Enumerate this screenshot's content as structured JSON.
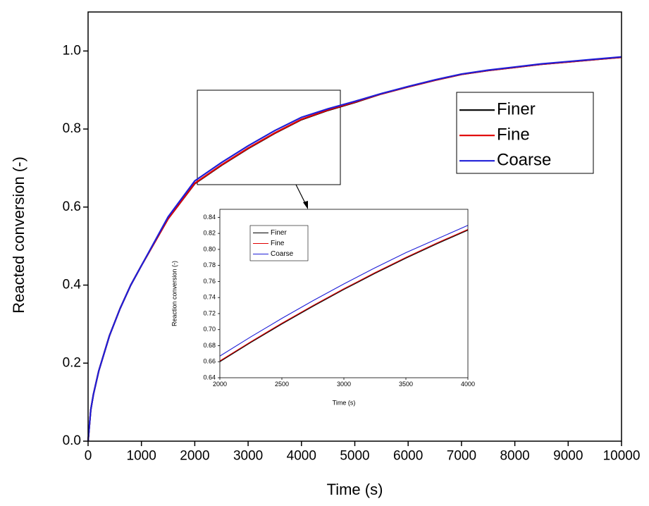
{
  "chart_data": [
    {
      "type": "line",
      "xlabel": "Time (s)",
      "ylabel": "Reacted conversion (-)",
      "x": [
        0,
        50,
        100,
        200,
        400,
        600,
        800,
        1000,
        1500,
        2000,
        2500,
        3000,
        3500,
        4000,
        4500,
        5000,
        5500,
        6000,
        6500,
        7000,
        7500,
        8000,
        8500,
        9000,
        9500,
        10000
      ],
      "series": [
        {
          "name": "Finer",
          "color": "#000000",
          "values": [
            0,
            0.08,
            0.12,
            0.18,
            0.27,
            0.34,
            0.4,
            0.45,
            0.57,
            0.66,
            0.707,
            0.75,
            0.789,
            0.824,
            0.848,
            0.868,
            0.89,
            0.908,
            0.925,
            0.94,
            0.95,
            0.958,
            0.966,
            0.972,
            0.978,
            0.984
          ]
        },
        {
          "name": "Fine",
          "color": "#e00000",
          "values": [
            0,
            0.08,
            0.12,
            0.18,
            0.27,
            0.34,
            0.4,
            0.45,
            0.57,
            0.661,
            0.708,
            0.751,
            0.79,
            0.825,
            0.849,
            0.869,
            0.89,
            0.908,
            0.925,
            0.94,
            0.95,
            0.958,
            0.966,
            0.972,
            0.978,
            0.984
          ]
        },
        {
          "name": "Coarse",
          "color": "#1f1fd8",
          "values": [
            0,
            0.08,
            0.12,
            0.18,
            0.27,
            0.34,
            0.4,
            0.45,
            0.575,
            0.667,
            0.714,
            0.757,
            0.796,
            0.83,
            0.852,
            0.871,
            0.891,
            0.909,
            0.926,
            0.941,
            0.951,
            0.959,
            0.967,
            0.973,
            0.979,
            0.985
          ]
        }
      ],
      "xlim": [
        0,
        10000
      ],
      "xticks": [
        0,
        1000,
        2000,
        3000,
        4000,
        5000,
        6000,
        7000,
        8000,
        9000,
        10000
      ],
      "ylim": [
        0,
        1.1
      ],
      "yticks": [
        {
          "value": 0,
          "label": "0.0"
        },
        0.2,
        0.4,
        0.6,
        0.8,
        {
          "value": 1,
          "label": "1.0"
        }
      ],
      "legend": "upper right"
    },
    {
      "type": "line",
      "xlabel": "Time (s)",
      "ylabel": "Reaction conversion (-)",
      "x": [
        2000,
        2250,
        2500,
        2750,
        3000,
        3250,
        3500,
        3750,
        4000
      ],
      "series": [
        {
          "name": "Finer",
          "color": "#000000",
          "values": [
            0.66,
            0.684,
            0.707,
            0.729,
            0.75,
            0.77,
            0.789,
            0.807,
            0.824
          ]
        },
        {
          "name": "Fine",
          "color": "#e00000",
          "values": [
            0.661,
            0.685,
            0.708,
            0.73,
            0.751,
            0.771,
            0.79,
            0.808,
            0.825
          ]
        },
        {
          "name": "Coarse",
          "color": "#1f1fd8",
          "values": [
            0.667,
            0.691,
            0.714,
            0.736,
            0.757,
            0.777,
            0.796,
            0.813,
            0.83
          ]
        }
      ],
      "xlim": [
        2000,
        4000
      ],
      "xticks": [
        2000,
        2500,
        3000,
        3500,
        4000
      ],
      "ylim": [
        0.64,
        0.85
      ],
      "yticks": [
        0.64,
        0.66,
        0.68,
        {
          "value": 0.7,
          "label": "0.70"
        },
        0.72,
        0.74,
        0.76,
        0.78,
        {
          "value": 0.8,
          "label": "0.80"
        },
        0.82,
        0.84
      ],
      "legend": "upper left"
    }
  ]
}
